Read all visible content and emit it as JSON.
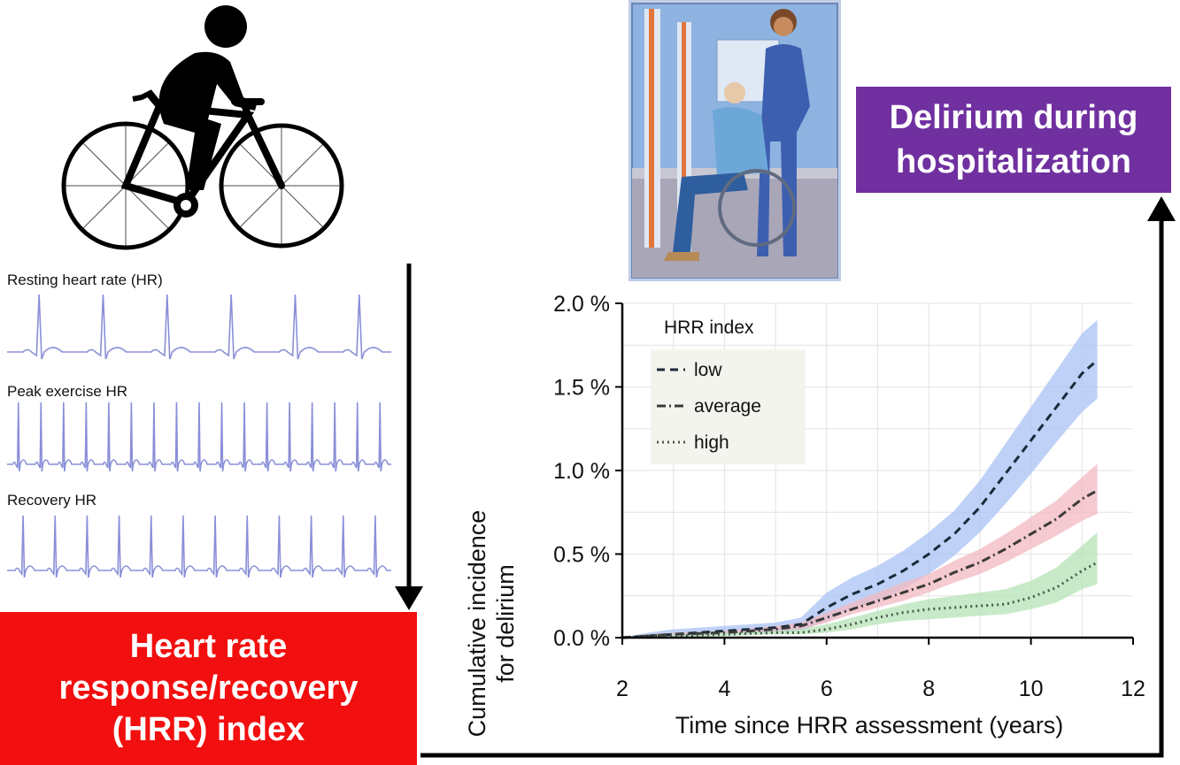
{
  "ecg": {
    "resting_label": "Resting heart rate (HR)",
    "peak_label": "Peak exercise HR",
    "recovery_label": "Recovery HR"
  },
  "boxes": {
    "hrr_line1": "Heart rate",
    "hrr_line2": "response/recovery",
    "hrr_line3": "(HRR) index",
    "delirium_line1": "Delirium during",
    "delirium_line2": "hospitalization"
  },
  "colors": {
    "red_box": "#f20f0f",
    "purple_box": "#7030a0",
    "ecg_trace": "#8a8fd8",
    "low_band": "#a9c2f4",
    "average_band": "#f2b8c0",
    "high_band": "#b5e3b5"
  },
  "icons": {
    "cyclist": "cyclist-icon",
    "hospital": "wheelchair-patient-nurse-illustration"
  },
  "chart_data": {
    "type": "line",
    "xlabel": "Time since HRR assessment (years)",
    "ylabel_line1": "Cumulative incidence",
    "ylabel_line2": "for delirium",
    "xlim": [
      2,
      12
    ],
    "ylim": [
      0,
      2.0
    ],
    "x_ticks": [
      2,
      4,
      6,
      8,
      10,
      12
    ],
    "y_ticks": [
      {
        "value": 0.0,
        "label": "0.0 %"
      },
      {
        "value": 0.5,
        "label": "0.5 %"
      },
      {
        "value": 1.0,
        "label": "1.0 %"
      },
      {
        "value": 1.5,
        "label": "1.5 %"
      },
      {
        "value": 2.0,
        "label": "2.0 %"
      }
    ],
    "grid": true,
    "legend_title": "HRR index",
    "legend_position": "top-left",
    "series": [
      {
        "name": "low",
        "dash": "dashed",
        "color": "#1b2a3a",
        "band_color": "#a9c2f4",
        "x": [
          2.0,
          2.5,
          3,
          4,
          5,
          5.5,
          6.0,
          6.5,
          7.0,
          7.5,
          8.0,
          8.5,
          9.0,
          9.5,
          10.0,
          10.5,
          11.0,
          11.3
        ],
        "y": [
          0.0,
          0.01,
          0.02,
          0.04,
          0.06,
          0.08,
          0.18,
          0.26,
          0.32,
          0.4,
          0.5,
          0.62,
          0.78,
          0.98,
          1.18,
          1.38,
          1.58,
          1.66
        ],
        "lower": [
          0.0,
          0.0,
          0.0,
          0.02,
          0.03,
          0.04,
          0.1,
          0.17,
          0.22,
          0.29,
          0.38,
          0.49,
          0.63,
          0.8,
          0.98,
          1.17,
          1.35,
          1.43
        ],
        "upper": [
          0.0,
          0.03,
          0.05,
          0.07,
          0.09,
          0.12,
          0.27,
          0.36,
          0.43,
          0.52,
          0.63,
          0.76,
          0.94,
          1.16,
          1.38,
          1.6,
          1.82,
          1.9
        ]
      },
      {
        "name": "average",
        "dash": "dashdot",
        "color": "#3a3a3a",
        "band_color": "#f2b8c0",
        "x": [
          2.0,
          2.5,
          3,
          4,
          5,
          5.5,
          6.0,
          6.5,
          7.0,
          7.5,
          8.0,
          8.5,
          9.0,
          9.5,
          10.0,
          10.5,
          11.0,
          11.3
        ],
        "y": [
          0.0,
          0.01,
          0.02,
          0.03,
          0.05,
          0.07,
          0.12,
          0.17,
          0.22,
          0.27,
          0.32,
          0.39,
          0.45,
          0.53,
          0.62,
          0.71,
          0.83,
          0.88
        ],
        "lower": [
          0.0,
          0.0,
          0.01,
          0.02,
          0.04,
          0.05,
          0.09,
          0.14,
          0.18,
          0.22,
          0.27,
          0.33,
          0.38,
          0.45,
          0.53,
          0.61,
          0.7,
          0.74
        ],
        "upper": [
          0.0,
          0.02,
          0.03,
          0.04,
          0.07,
          0.09,
          0.15,
          0.21,
          0.27,
          0.33,
          0.38,
          0.46,
          0.53,
          0.62,
          0.72,
          0.82,
          0.96,
          1.04
        ]
      },
      {
        "name": "high",
        "dash": "dotted",
        "color": "#4a5a4a",
        "band_color": "#b5e3b5",
        "x": [
          2.0,
          2.5,
          3,
          4,
          5,
          5.5,
          6.0,
          6.5,
          7.0,
          7.5,
          8.0,
          8.5,
          9.0,
          9.5,
          10.0,
          10.5,
          11.0,
          11.3
        ],
        "y": [
          0.0,
          0.01,
          0.01,
          0.02,
          0.03,
          0.03,
          0.05,
          0.08,
          0.12,
          0.15,
          0.17,
          0.18,
          0.19,
          0.2,
          0.24,
          0.3,
          0.4,
          0.45
        ],
        "lower": [
          0.0,
          0.0,
          0.0,
          0.01,
          0.02,
          0.02,
          0.03,
          0.05,
          0.08,
          0.1,
          0.11,
          0.12,
          0.13,
          0.14,
          0.17,
          0.21,
          0.29,
          0.32
        ],
        "upper": [
          0.0,
          0.02,
          0.02,
          0.03,
          0.04,
          0.05,
          0.08,
          0.12,
          0.16,
          0.2,
          0.23,
          0.25,
          0.27,
          0.29,
          0.34,
          0.42,
          0.55,
          0.63
        ]
      }
    ]
  }
}
